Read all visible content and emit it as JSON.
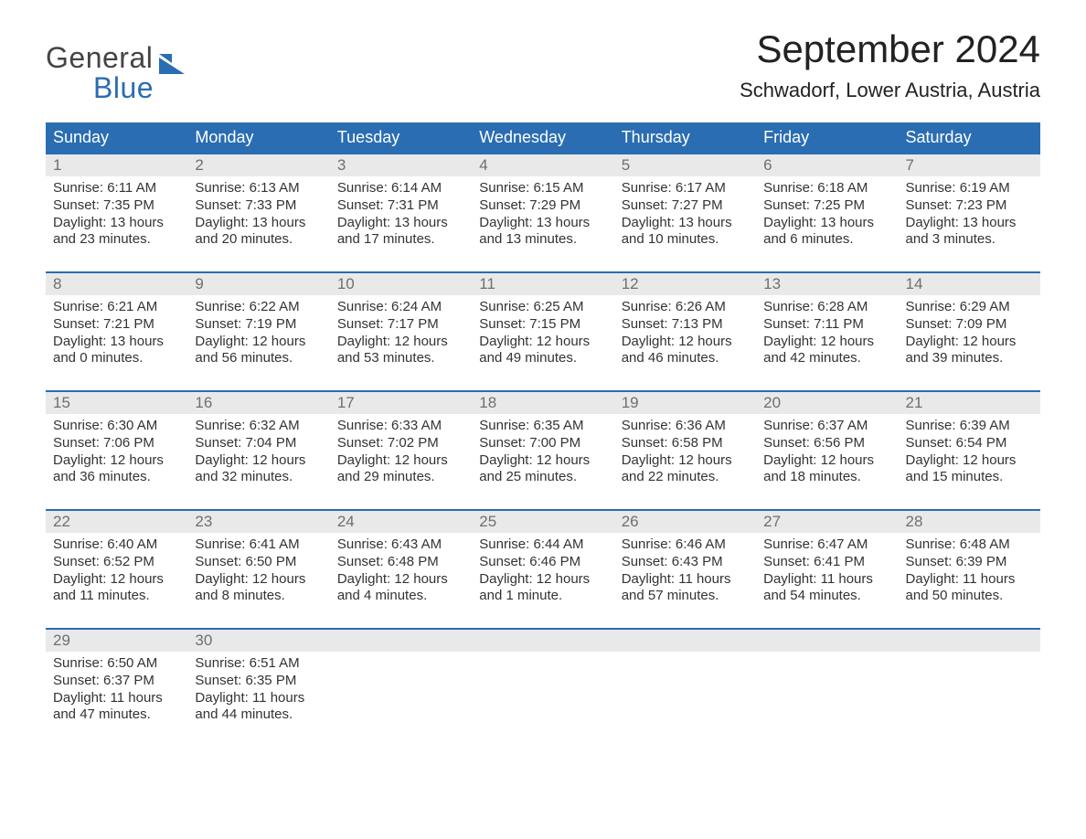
{
  "logo": {
    "line1": "General",
    "line2": "Blue",
    "line1_color": "#444444",
    "line2_color": "#2a6db2",
    "icon_color": "#2a6db2"
  },
  "title": "September 2024",
  "subtitle": "Schwadorf, Lower Austria, Austria",
  "styling": {
    "header_bg": "#2a6db2",
    "header_text": "#ffffff",
    "daynum_bg": "#e9e9e9",
    "daynum_text": "#6f6f6f",
    "week_border": "#2a6db2",
    "body_text": "#333333",
    "background": "#ffffff",
    "title_fontsize": 42,
    "subtitle_fontsize": 22,
    "header_fontsize": 18,
    "daynum_fontsize": 17,
    "body_fontsize": 15
  },
  "day_headers": [
    "Sunday",
    "Monday",
    "Tuesday",
    "Wednesday",
    "Thursday",
    "Friday",
    "Saturday"
  ],
  "weeks": [
    [
      {
        "n": "1",
        "sunrise": "Sunrise: 6:11 AM",
        "sunset": "Sunset: 7:35 PM",
        "d1": "Daylight: 13 hours",
        "d2": "and 23 minutes."
      },
      {
        "n": "2",
        "sunrise": "Sunrise: 6:13 AM",
        "sunset": "Sunset: 7:33 PM",
        "d1": "Daylight: 13 hours",
        "d2": "and 20 minutes."
      },
      {
        "n": "3",
        "sunrise": "Sunrise: 6:14 AM",
        "sunset": "Sunset: 7:31 PM",
        "d1": "Daylight: 13 hours",
        "d2": "and 17 minutes."
      },
      {
        "n": "4",
        "sunrise": "Sunrise: 6:15 AM",
        "sunset": "Sunset: 7:29 PM",
        "d1": "Daylight: 13 hours",
        "d2": "and 13 minutes."
      },
      {
        "n": "5",
        "sunrise": "Sunrise: 6:17 AM",
        "sunset": "Sunset: 7:27 PM",
        "d1": "Daylight: 13 hours",
        "d2": "and 10 minutes."
      },
      {
        "n": "6",
        "sunrise": "Sunrise: 6:18 AM",
        "sunset": "Sunset: 7:25 PM",
        "d1": "Daylight: 13 hours",
        "d2": "and 6 minutes."
      },
      {
        "n": "7",
        "sunrise": "Sunrise: 6:19 AM",
        "sunset": "Sunset: 7:23 PM",
        "d1": "Daylight: 13 hours",
        "d2": "and 3 minutes."
      }
    ],
    [
      {
        "n": "8",
        "sunrise": "Sunrise: 6:21 AM",
        "sunset": "Sunset: 7:21 PM",
        "d1": "Daylight: 13 hours",
        "d2": "and 0 minutes."
      },
      {
        "n": "9",
        "sunrise": "Sunrise: 6:22 AM",
        "sunset": "Sunset: 7:19 PM",
        "d1": "Daylight: 12 hours",
        "d2": "and 56 minutes."
      },
      {
        "n": "10",
        "sunrise": "Sunrise: 6:24 AM",
        "sunset": "Sunset: 7:17 PM",
        "d1": "Daylight: 12 hours",
        "d2": "and 53 minutes."
      },
      {
        "n": "11",
        "sunrise": "Sunrise: 6:25 AM",
        "sunset": "Sunset: 7:15 PM",
        "d1": "Daylight: 12 hours",
        "d2": "and 49 minutes."
      },
      {
        "n": "12",
        "sunrise": "Sunrise: 6:26 AM",
        "sunset": "Sunset: 7:13 PM",
        "d1": "Daylight: 12 hours",
        "d2": "and 46 minutes."
      },
      {
        "n": "13",
        "sunrise": "Sunrise: 6:28 AM",
        "sunset": "Sunset: 7:11 PM",
        "d1": "Daylight: 12 hours",
        "d2": "and 42 minutes."
      },
      {
        "n": "14",
        "sunrise": "Sunrise: 6:29 AM",
        "sunset": "Sunset: 7:09 PM",
        "d1": "Daylight: 12 hours",
        "d2": "and 39 minutes."
      }
    ],
    [
      {
        "n": "15",
        "sunrise": "Sunrise: 6:30 AM",
        "sunset": "Sunset: 7:06 PM",
        "d1": "Daylight: 12 hours",
        "d2": "and 36 minutes."
      },
      {
        "n": "16",
        "sunrise": "Sunrise: 6:32 AM",
        "sunset": "Sunset: 7:04 PM",
        "d1": "Daylight: 12 hours",
        "d2": "and 32 minutes."
      },
      {
        "n": "17",
        "sunrise": "Sunrise: 6:33 AM",
        "sunset": "Sunset: 7:02 PM",
        "d1": "Daylight: 12 hours",
        "d2": "and 29 minutes."
      },
      {
        "n": "18",
        "sunrise": "Sunrise: 6:35 AM",
        "sunset": "Sunset: 7:00 PM",
        "d1": "Daylight: 12 hours",
        "d2": "and 25 minutes."
      },
      {
        "n": "19",
        "sunrise": "Sunrise: 6:36 AM",
        "sunset": "Sunset: 6:58 PM",
        "d1": "Daylight: 12 hours",
        "d2": "and 22 minutes."
      },
      {
        "n": "20",
        "sunrise": "Sunrise: 6:37 AM",
        "sunset": "Sunset: 6:56 PM",
        "d1": "Daylight: 12 hours",
        "d2": "and 18 minutes."
      },
      {
        "n": "21",
        "sunrise": "Sunrise: 6:39 AM",
        "sunset": "Sunset: 6:54 PM",
        "d1": "Daylight: 12 hours",
        "d2": "and 15 minutes."
      }
    ],
    [
      {
        "n": "22",
        "sunrise": "Sunrise: 6:40 AM",
        "sunset": "Sunset: 6:52 PM",
        "d1": "Daylight: 12 hours",
        "d2": "and 11 minutes."
      },
      {
        "n": "23",
        "sunrise": "Sunrise: 6:41 AM",
        "sunset": "Sunset: 6:50 PM",
        "d1": "Daylight: 12 hours",
        "d2": "and 8 minutes."
      },
      {
        "n": "24",
        "sunrise": "Sunrise: 6:43 AM",
        "sunset": "Sunset: 6:48 PM",
        "d1": "Daylight: 12 hours",
        "d2": "and 4 minutes."
      },
      {
        "n": "25",
        "sunrise": "Sunrise: 6:44 AM",
        "sunset": "Sunset: 6:46 PM",
        "d1": "Daylight: 12 hours",
        "d2": "and 1 minute."
      },
      {
        "n": "26",
        "sunrise": "Sunrise: 6:46 AM",
        "sunset": "Sunset: 6:43 PM",
        "d1": "Daylight: 11 hours",
        "d2": "and 57 minutes."
      },
      {
        "n": "27",
        "sunrise": "Sunrise: 6:47 AM",
        "sunset": "Sunset: 6:41 PM",
        "d1": "Daylight: 11 hours",
        "d2": "and 54 minutes."
      },
      {
        "n": "28",
        "sunrise": "Sunrise: 6:48 AM",
        "sunset": "Sunset: 6:39 PM",
        "d1": "Daylight: 11 hours",
        "d2": "and 50 minutes."
      }
    ],
    [
      {
        "n": "29",
        "sunrise": "Sunrise: 6:50 AM",
        "sunset": "Sunset: 6:37 PM",
        "d1": "Daylight: 11 hours",
        "d2": "and 47 minutes."
      },
      {
        "n": "30",
        "sunrise": "Sunrise: 6:51 AM",
        "sunset": "Sunset: 6:35 PM",
        "d1": "Daylight: 11 hours",
        "d2": "and 44 minutes."
      },
      {
        "empty": true
      },
      {
        "empty": true
      },
      {
        "empty": true
      },
      {
        "empty": true
      },
      {
        "empty": true
      }
    ]
  ]
}
